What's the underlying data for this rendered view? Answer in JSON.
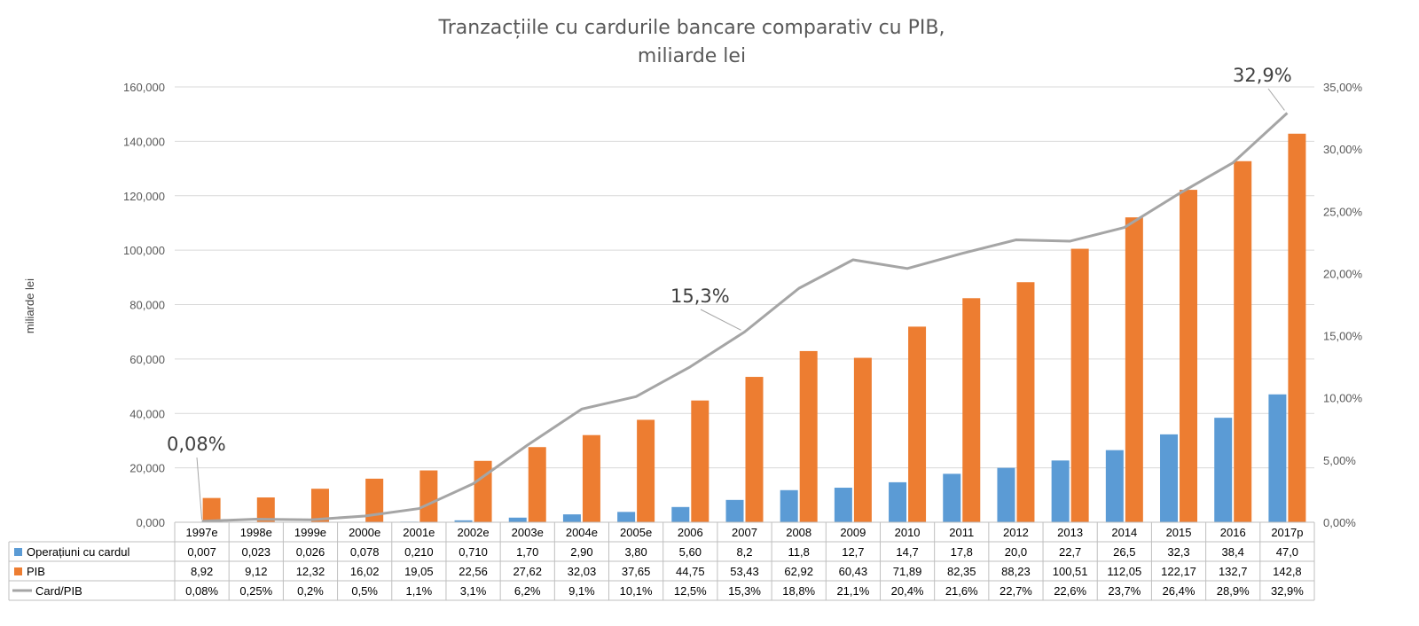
{
  "colors": {
    "card": "#5b9bd5",
    "pib": "#ed7d31",
    "ratio": "#a5a5a5",
    "grid": "#d9d9d9"
  },
  "chart_data": {
    "type": "bar",
    "title_lines": [
      "Tranzacțiile cu cardurile bancare comparativ cu PIB,",
      "miliarde lei"
    ],
    "ylabel": "miliarde lei",
    "categories": [
      "1997e",
      "1998e",
      "1999e",
      "2000e",
      "2001e",
      "2002e",
      "2003e",
      "2004e",
      "2005e",
      "2006",
      "2007",
      "2008",
      "2009",
      "2010",
      "2011",
      "2012",
      "2013",
      "2014",
      "2015",
      "2016",
      "2017p"
    ],
    "ylim": [
      0,
      160000
    ],
    "yticks": [
      "0,000",
      "20,000",
      "40,000",
      "60,000",
      "80,000",
      "100,000",
      "120,000",
      "140,000",
      "160,000"
    ],
    "y2lim": [
      0,
      35
    ],
    "y2ticks": [
      "0,00%",
      "5,00%",
      "10,00%",
      "15,00%",
      "20,00%",
      "25,00%",
      "30,00%",
      "35,00%"
    ],
    "grid": true,
    "legend": "data table below plot",
    "series": [
      {
        "name": "Operațiuni cu cardul",
        "type": "bar",
        "axis": "left",
        "values": [
          7,
          23,
          26,
          78,
          210,
          710,
          1700,
          2900,
          3800,
          5600,
          8200,
          11800,
          12700,
          14700,
          17800,
          20000,
          22700,
          26500,
          32300,
          38400,
          47000
        ],
        "labels": [
          "0,007",
          "0,023",
          "0,026",
          "0,078",
          "0,210",
          "0,710",
          "1,70",
          "2,90",
          "3,80",
          "5,60",
          "8,2",
          "11,8",
          "12,7",
          "14,7",
          "17,8",
          "20,0",
          "22,7",
          "26,5",
          "32,3",
          "38,4",
          "47,0"
        ]
      },
      {
        "name": "PIB",
        "type": "bar",
        "axis": "left",
        "values": [
          8920,
          9120,
          12320,
          16020,
          19050,
          22560,
          27620,
          32030,
          37650,
          44750,
          53430,
          62920,
          60430,
          71890,
          82350,
          88230,
          100510,
          112050,
          122170,
          132700,
          142800
        ],
        "labels": [
          "8,92",
          "9,12",
          "12,32",
          "16,02",
          "19,05",
          "22,56",
          "27,62",
          "32,03",
          "37,65",
          "44,75",
          "53,43",
          "62,92",
          "60,43",
          "71,89",
          "82,35",
          "88,23",
          "100,51",
          "112,05",
          "122,17",
          "132,7",
          "142,8"
        ]
      },
      {
        "name": "Card/PIB",
        "type": "line",
        "axis": "right",
        "values": [
          0.08,
          0.25,
          0.2,
          0.5,
          1.1,
          3.1,
          6.2,
          9.1,
          10.1,
          12.5,
          15.3,
          18.8,
          21.1,
          20.4,
          21.6,
          22.7,
          22.6,
          23.7,
          26.4,
          28.9,
          32.9
        ],
        "labels": [
          "0,08%",
          "0,25%",
          "0,2%",
          "0,5%",
          "1,1%",
          "3,1%",
          "6,2%",
          "9,1%",
          "10,1%",
          "12,5%",
          "15,3%",
          "18,8%",
          "21,1%",
          "20,4%",
          "21,6%",
          "22,7%",
          "22,6%",
          "23,7%",
          "26,4%",
          "28,9%",
          "32,9%"
        ]
      }
    ],
    "annotations": [
      {
        "text": "0,08%",
        "category_index": 0
      },
      {
        "text": "15,3%",
        "category_index": 10
      },
      {
        "text": "32,9%",
        "category_index": 20
      }
    ]
  }
}
